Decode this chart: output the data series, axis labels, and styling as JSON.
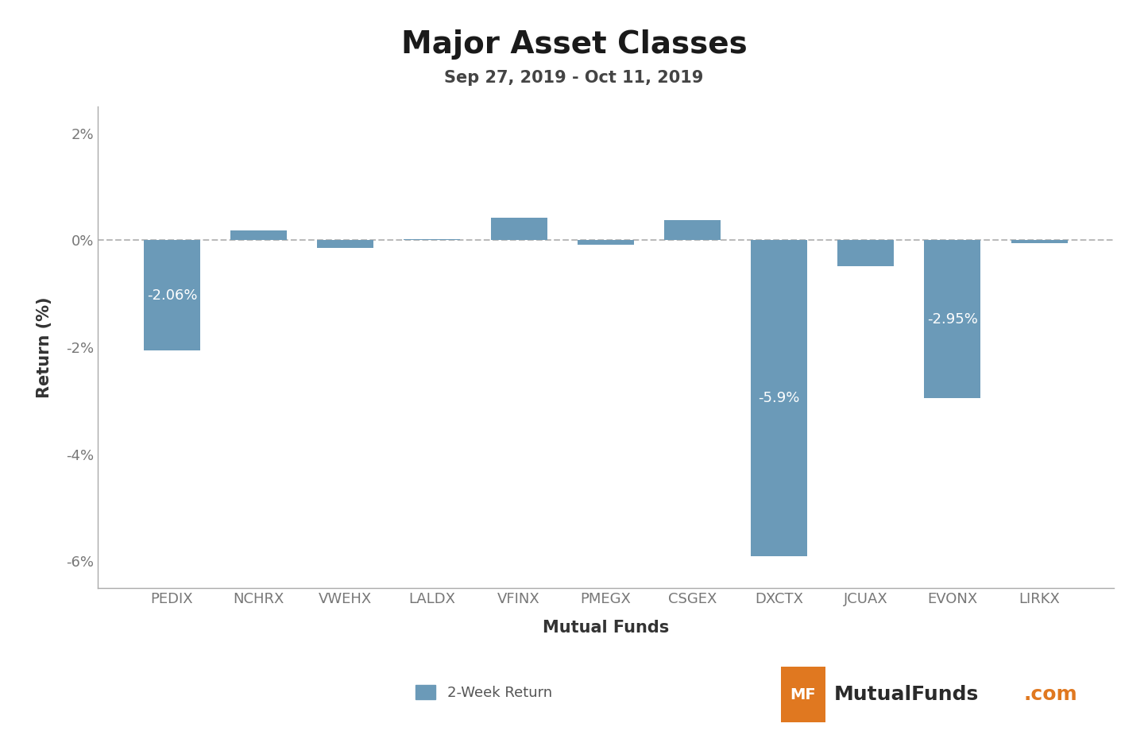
{
  "title": "Major Asset Classes",
  "subtitle": "Sep 27, 2019 - Oct 11, 2019",
  "xlabel": "Mutual Funds",
  "ylabel": "Return (%)",
  "legend_label": "2-Week Return",
  "categories": [
    "PEDIX",
    "NCHRX",
    "VWEHX",
    "LALDX",
    "VFINX",
    "PMEGX",
    "CSGEX",
    "DXCTX",
    "JCUAX",
    "EVONX",
    "LIRKX"
  ],
  "values": [
    -2.06,
    0.18,
    -0.14,
    0.02,
    0.42,
    -0.08,
    0.38,
    -5.9,
    -0.48,
    -2.95,
    -0.06
  ],
  "bar_color": "#6b9ab8",
  "ylim": [
    -6.5,
    2.5
  ],
  "yticks": [
    -6,
    -4,
    -2,
    0,
    2
  ],
  "ytick_labels": [
    "-6%",
    "-4%",
    "-2%",
    "0%",
    "2%"
  ],
  "label_threshold": -0.5,
  "background_color": "#ffffff",
  "plot_bg_color": "#ffffff",
  "zero_line_color": "#bbbbbb",
  "title_fontsize": 28,
  "subtitle_fontsize": 15,
  "axis_label_fontsize": 15,
  "tick_fontsize": 13,
  "bar_label_fontsize": 13,
  "legend_fontsize": 13,
  "logo_bg_color": "#e07820",
  "logo_text_color": "#ffffff",
  "logo_site_color": "#2b2b2b",
  "logo_dot_color": "#e07820"
}
